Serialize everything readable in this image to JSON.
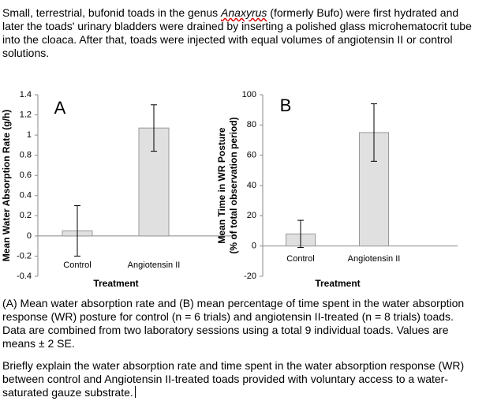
{
  "intro": {
    "before": "Small, terrestrial, bufonid toads in the genus ",
    "genus": "Anaxyrus",
    "after": " (formerly Bufo) were first hydrated and later the toads' urinary bladders were drained by inserting a polished glass microhematocrit tube into the cloaca.  After that, toads were injected with equal volumes of angiotensin II or control solutions."
  },
  "chart_data": [
    {
      "type": "bar",
      "annotation": "A",
      "ylabel": [
        "Mean Water Absorption Rate (g/h)"
      ],
      "xlabel": "Treatment",
      "categories": [
        "Control",
        "Angiotensin II"
      ],
      "values": [
        0.05,
        1.07
      ],
      "errors": [
        0.25,
        0.23
      ],
      "color": "#e0e0e0",
      "ylim": [
        -0.4,
        1.4
      ],
      "yticks": [
        -0.4,
        -0.2,
        0,
        0.2,
        0.4,
        0.6,
        0.8,
        1,
        1.2,
        1.4
      ]
    },
    {
      "type": "bar",
      "annotation": "B",
      "ylabel": [
        "Mean Time in WR Posture",
        "(% of total observation period)"
      ],
      "xlabel": "Treatment",
      "categories": [
        "Control",
        "Angiotensin II"
      ],
      "values": [
        8,
        75
      ],
      "errors": [
        9,
        19
      ],
      "color": "#e0e0e0",
      "ylim": [
        -20,
        100
      ],
      "yticks": [
        -20,
        0,
        20,
        40,
        60,
        80,
        100
      ]
    }
  ],
  "caption": "(A) Mean water absorption rate and (B) mean percentage of time spent in the water absorption response (WR) posture for control (n = 6 trials) and angiotensin II-treated (n = 8 trials) toads. Data are combined from two laboratory sessions using a total 9 individual toads. Values are means ± 2 SE.",
  "question": "Briefly explain the water absorption rate and time spent in the water absorption response (WR) between control and Angiotensin II-treated toads provided with voluntary access to a water-saturated gauze substrate."
}
